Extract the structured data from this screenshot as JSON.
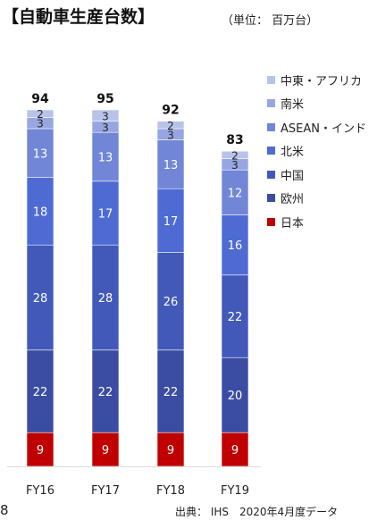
{
  "header": {
    "title": "【自動車生産台数】",
    "unit": "（単位： 百万台）"
  },
  "footer": {
    "page_number": "8",
    "source": "出典： IHS　2020年4月度データ"
  },
  "chart_data": {
    "type": "bar",
    "stacked": true,
    "title": "【自動車生産台数】",
    "categories": [
      "FY16",
      "FY17",
      "FY18",
      "FY19"
    ],
    "totals": [
      94,
      95,
      92,
      83
    ],
    "ylim": [
      0,
      100
    ],
    "grid": false,
    "legend_position": "right",
    "series": [
      {
        "name": "日本",
        "values": [
          9,
          9,
          9,
          9
        ],
        "color": "#c00000",
        "label_color": "#ffffff"
      },
      {
        "name": "欧州",
        "values": [
          22,
          22,
          22,
          20
        ],
        "color": "#3b4da2",
        "label_color": "#ffffff"
      },
      {
        "name": "中国",
        "values": [
          28,
          28,
          26,
          22
        ],
        "color": "#4359b9",
        "label_color": "#ffffff"
      },
      {
        "name": "北米",
        "values": [
          18,
          17,
          17,
          16
        ],
        "color": "#4e6bd4",
        "label_color": "#ffffff"
      },
      {
        "name": "ASEAN・インド",
        "values": [
          13,
          13,
          13,
          12
        ],
        "color": "#7186d6",
        "label_color": "#ffffff"
      },
      {
        "name": "南米",
        "values": [
          3,
          3,
          3,
          3
        ],
        "color": "#97a6e0",
        "label_color": "#222222"
      },
      {
        "name": "中東・アフリカ",
        "values": [
          2,
          3,
          2,
          2
        ],
        "color": "#b8c3ea",
        "label_color": "#222222"
      }
    ]
  }
}
